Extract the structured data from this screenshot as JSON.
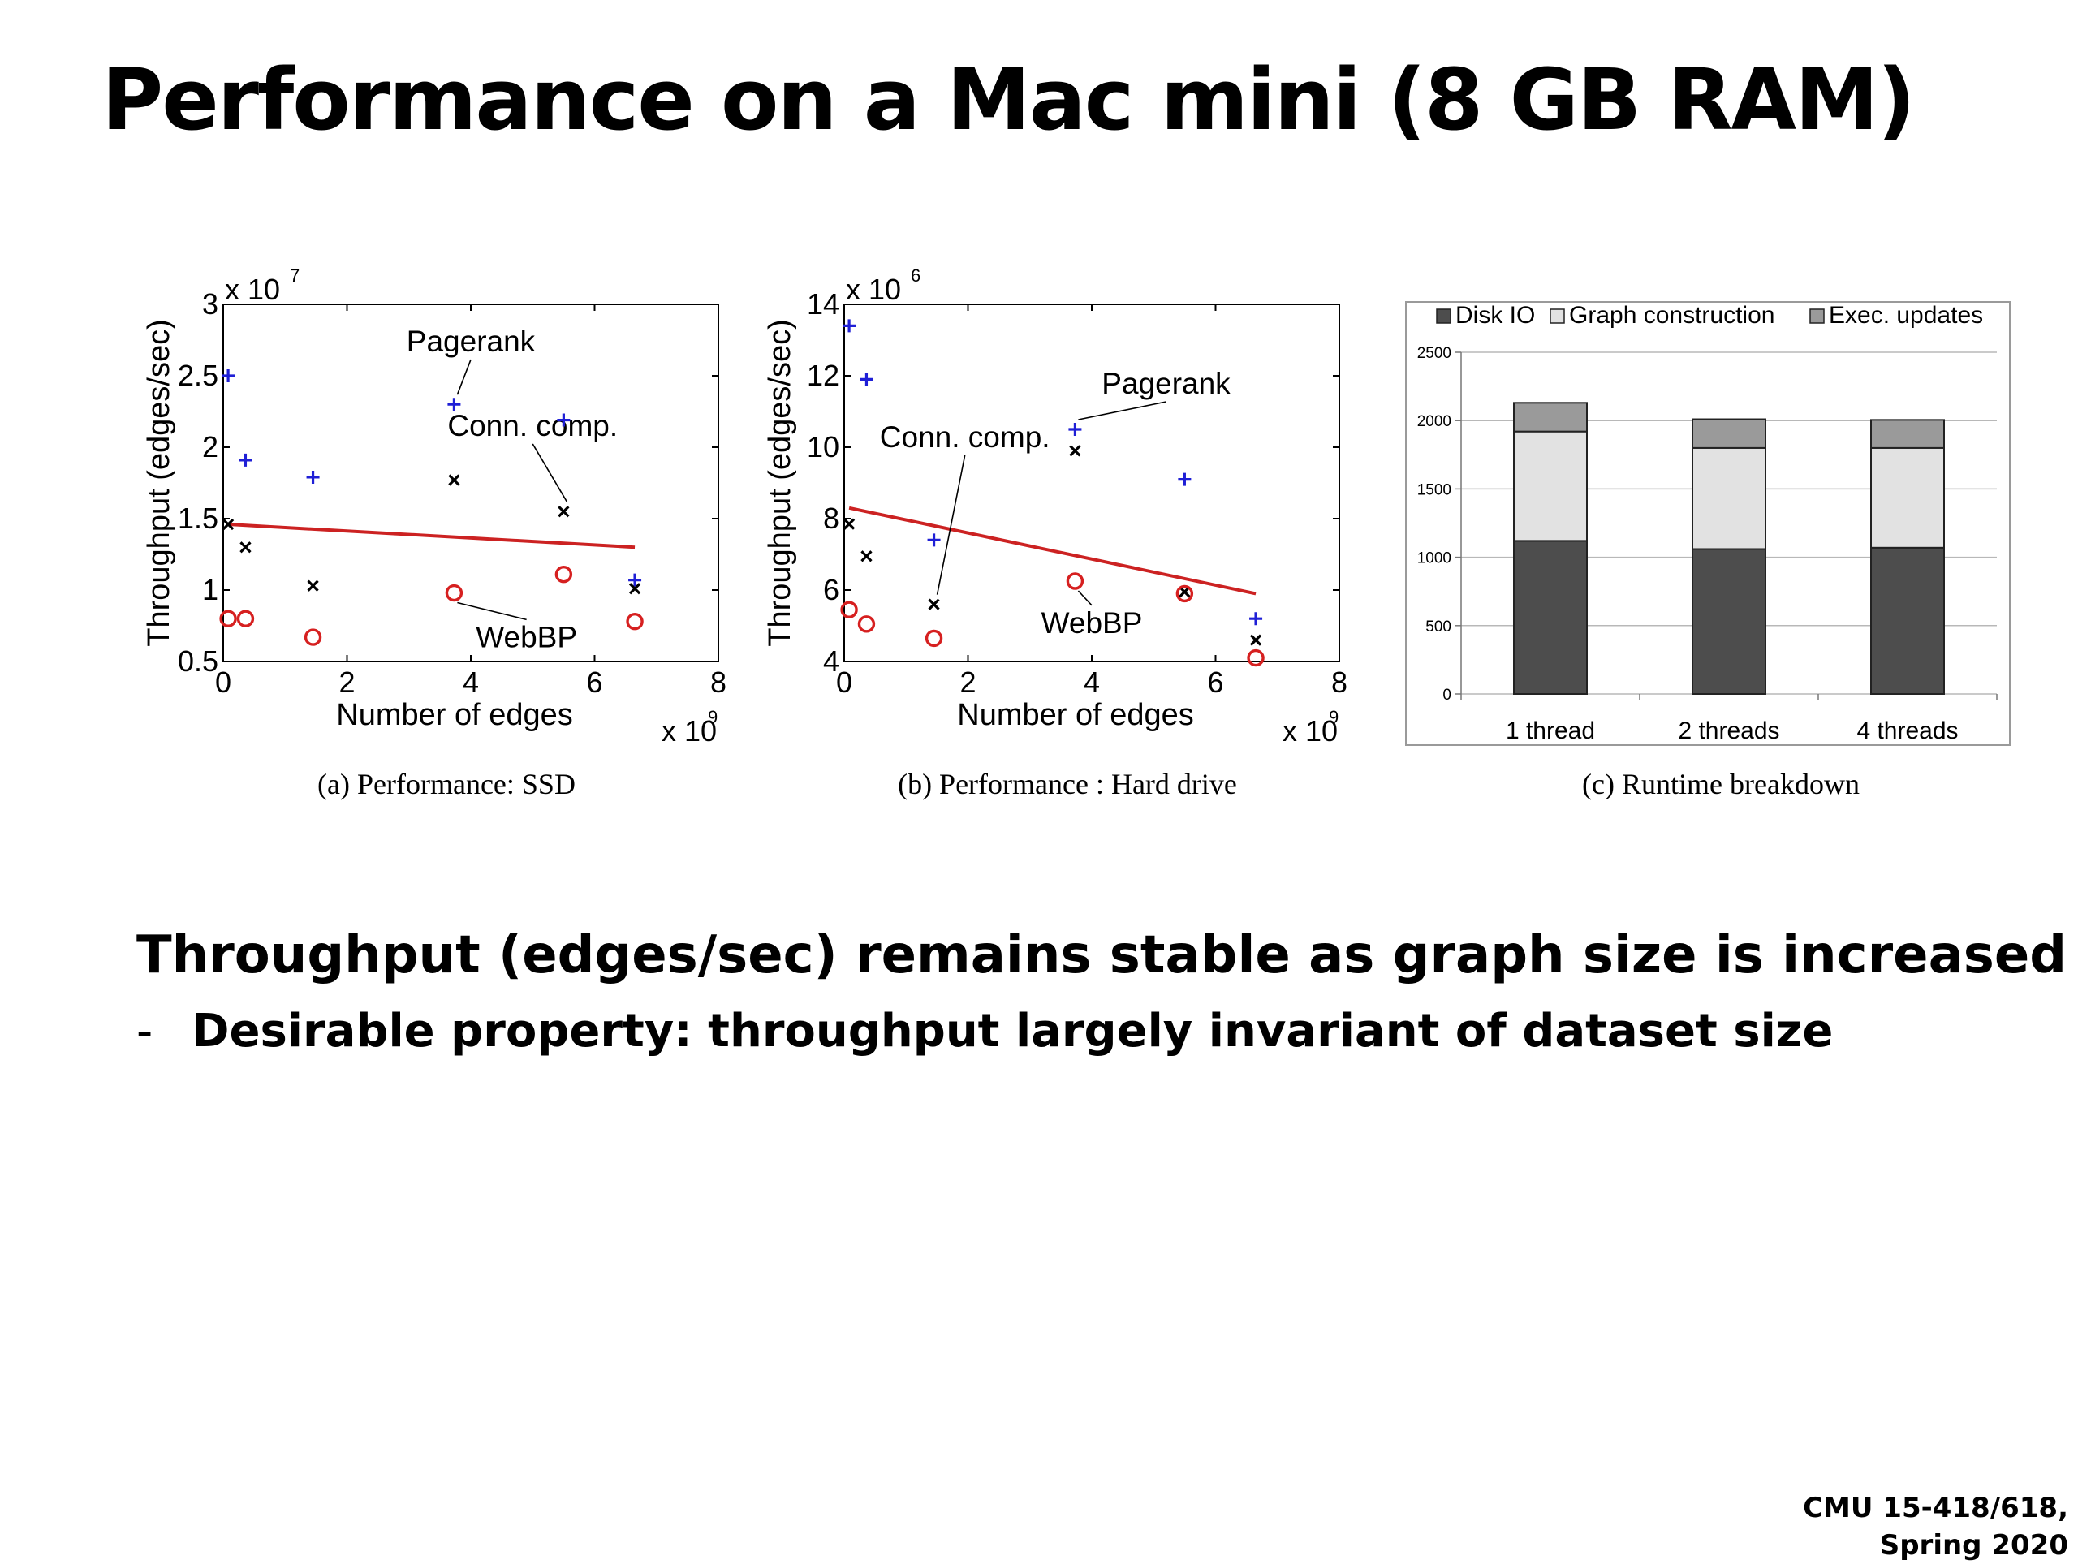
{
  "slide": {
    "title": "Performance on a Mac mini (8 GB RAM)",
    "bullet_main": "Throughput (edges/sec) remains stable as graph size is increased",
    "bullet_sub_dash": "-",
    "bullet_sub": "Desirable property: throughput largely invariant of dataset size",
    "footer_line1": "CMU 15-418/618,",
    "footer_line2": "Spring 2020"
  },
  "chart_data": [
    {
      "id": "a",
      "type": "scatter",
      "caption": "(a) Performance: SSD",
      "xlabel": "Number of edges",
      "ylabel": "Throughput (edges/sec)",
      "x_multiplier": "x 10",
      "x_exponent": "9",
      "y_multiplier": "x 10",
      "y_exponent": "7",
      "xlim": [
        0,
        8
      ],
      "ylim": [
        0.5,
        3
      ],
      "xticks": [
        "0",
        "2",
        "4",
        "6",
        "8"
      ],
      "yticks": [
        "0.5",
        "1",
        "1.5",
        "2",
        "2.5",
        "3"
      ],
      "series": [
        {
          "name": "Pagerank",
          "marker": "plus",
          "color": "#1f1fd6",
          "points": [
            [
              0.08,
              2.5
            ],
            [
              0.36,
              1.91
            ],
            [
              1.45,
              1.79
            ],
            [
              3.73,
              2.3
            ],
            [
              5.5,
              2.19
            ],
            [
              6.65,
              1.07
            ]
          ]
        },
        {
          "name": "Conn. comp.",
          "marker": "cross",
          "color": "#000000",
          "points": [
            [
              0.08,
              1.46
            ],
            [
              0.36,
              1.3
            ],
            [
              1.45,
              1.03
            ],
            [
              3.73,
              1.77
            ],
            [
              5.5,
              1.55
            ],
            [
              6.65,
              1.01
            ]
          ]
        },
        {
          "name": "WebBP",
          "marker": "circle",
          "color": "#d62020",
          "points": [
            [
              0.08,
              0.8
            ],
            [
              0.36,
              0.8
            ],
            [
              1.45,
              0.67
            ],
            [
              3.73,
              0.98
            ],
            [
              5.5,
              1.11
            ],
            [
              6.65,
              0.78
            ]
          ]
        }
      ],
      "trend": {
        "color": "#cc2222",
        "points": [
          [
            0.08,
            1.46
          ],
          [
            6.65,
            1.3
          ]
        ]
      },
      "annotations": [
        {
          "text": "Pagerank",
          "tx": 4.0,
          "ty": 2.67,
          "ax": 3.73,
          "ay": 2.3
        },
        {
          "text": "Conn. comp.",
          "tx": 5.0,
          "ty": 2.08,
          "ax": 5.5,
          "ay": 1.55
        },
        {
          "text": "WebBP",
          "tx": 4.9,
          "ty": 0.6,
          "ax": 3.73,
          "ay": 0.98
        }
      ]
    },
    {
      "id": "b",
      "type": "scatter",
      "caption": "(b) Performance : Hard drive",
      "xlabel": "Number of edges",
      "ylabel": "Throughput (edges/sec)",
      "x_multiplier": "x 10",
      "x_exponent": "9",
      "y_multiplier": "x 10",
      "y_exponent": "6",
      "xlim": [
        0,
        8
      ],
      "ylim": [
        4,
        14
      ],
      "xticks": [
        "0",
        "2",
        "4",
        "6",
        "8"
      ],
      "yticks": [
        "4",
        "6",
        "8",
        "10",
        "12",
        "14"
      ],
      "series": [
        {
          "name": "Pagerank",
          "marker": "plus",
          "color": "#1f1fd6",
          "points": [
            [
              0.08,
              13.4
            ],
            [
              0.36,
              11.9
            ],
            [
              1.45,
              7.4
            ],
            [
              3.73,
              10.5
            ],
            [
              5.5,
              9.1
            ],
            [
              6.65,
              5.2
            ]
          ]
        },
        {
          "name": "Conn. comp.",
          "marker": "cross",
          "color": "#000000",
          "points": [
            [
              0.08,
              7.85
            ],
            [
              0.36,
              6.95
            ],
            [
              1.45,
              5.6
            ],
            [
              3.73,
              9.9
            ],
            [
              5.5,
              5.95
            ],
            [
              6.65,
              4.6
            ]
          ]
        },
        {
          "name": "WebBP",
          "marker": "circle",
          "color": "#d62020",
          "points": [
            [
              0.08,
              5.45
            ],
            [
              0.36,
              5.05
            ],
            [
              1.45,
              4.65
            ],
            [
              3.73,
              6.25
            ],
            [
              5.5,
              5.9
            ],
            [
              6.65,
              4.1
            ]
          ]
        }
      ],
      "trend": {
        "color": "#cc2222",
        "points": [
          [
            0.08,
            8.3
          ],
          [
            6.65,
            5.9
          ]
        ]
      },
      "annotations": [
        {
          "text": "Pagerank",
          "tx": 5.2,
          "ty": 11.5,
          "ax": 3.73,
          "ay": 10.5
        },
        {
          "text": "Conn. comp.",
          "tx": 1.95,
          "ty": 10.0,
          "ax": 1.45,
          "ay": 5.6
        },
        {
          "text": "WebBP",
          "tx": 4.0,
          "ty": 4.8,
          "ax": 3.73,
          "ay": 6.25
        }
      ]
    },
    {
      "id": "c",
      "type": "bar",
      "stacked": true,
      "caption": "(c) Runtime breakdown",
      "categories": [
        "1 thread",
        "2 threads",
        "4 threads"
      ],
      "ylim": [
        0,
        2500
      ],
      "yticks": [
        "0",
        "500",
        "1000",
        "1500",
        "2000",
        "2500"
      ],
      "grid": true,
      "legend_position": "top",
      "series": [
        {
          "name": "Disk IO",
          "color": "#4d4d4d",
          "values": [
            1120,
            1060,
            1070
          ]
        },
        {
          "name": "Graph construction",
          "color": "#e2e2e2",
          "values": [
            800,
            740,
            730
          ]
        },
        {
          "name": "Exec. updates",
          "color": "#9a9a9a",
          "values": [
            210,
            210,
            205
          ]
        }
      ]
    }
  ]
}
